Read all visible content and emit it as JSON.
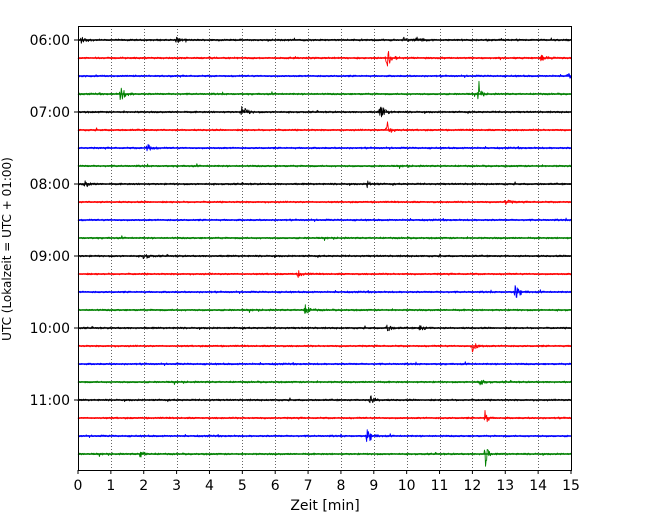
{
  "chart_data": {
    "type": "line",
    "title": "",
    "xlabel": "Zeit  [min]",
    "ylabel": "UTC (Lokalzeit = UTC + 01:00)",
    "xlim": [
      0,
      15
    ],
    "x_ticks": [
      0,
      1,
      2,
      3,
      4,
      5,
      6,
      7,
      8,
      9,
      10,
      11,
      12,
      13,
      14,
      15
    ],
    "x_tick_labels": [
      "0",
      "1",
      "2",
      "3",
      "4",
      "5",
      "6",
      "7",
      "8",
      "9",
      "10",
      "11",
      "12",
      "13",
      "14",
      "15"
    ],
    "grid": "vertical dotted",
    "row_start_times": [
      "06:00",
      "06:15",
      "06:30",
      "06:45",
      "07:00",
      "07:15",
      "07:30",
      "07:45",
      "08:00",
      "08:15",
      "08:30",
      "08:45",
      "09:00",
      "09:15",
      "09:30",
      "09:45",
      "10:00",
      "10:15",
      "10:30",
      "10:45",
      "11:00",
      "11:15",
      "11:30",
      "11:45"
    ],
    "y_tick_labels": [
      "06:00",
      "07:00",
      "08:00",
      "09:00",
      "10:00",
      "11:00"
    ],
    "color_cycle": [
      "#000000",
      "#ff0000",
      "#0000ff",
      "#008000"
    ],
    "events": [
      {
        "row": 0,
        "t": 0.1,
        "amp": 0.35
      },
      {
        "row": 0,
        "t": 3.0,
        "amp": 0.3
      },
      {
        "row": 0,
        "t": 9.9,
        "amp": 0.3
      },
      {
        "row": 0,
        "t": 10.3,
        "amp": 0.4
      },
      {
        "row": 1,
        "t": 9.4,
        "amp": 1.1
      },
      {
        "row": 1,
        "t": 14.1,
        "amp": 0.3
      },
      {
        "row": 2,
        "t": 14.9,
        "amp": 0.45
      },
      {
        "row": 3,
        "t": 1.3,
        "amp": 0.75
      },
      {
        "row": 3,
        "t": 12.2,
        "amp": 1.5
      },
      {
        "row": 4,
        "t": 5.0,
        "amp": 0.75
      },
      {
        "row": 4,
        "t": 9.2,
        "amp": 0.85
      },
      {
        "row": 5,
        "t": 9.4,
        "amp": 0.95
      },
      {
        "row": 6,
        "t": 2.1,
        "amp": 0.5
      },
      {
        "row": 8,
        "t": 0.2,
        "amp": 0.4
      },
      {
        "row": 8,
        "t": 8.8,
        "amp": 0.35
      },
      {
        "row": 9,
        "t": 13.0,
        "amp": 0.35
      },
      {
        "row": 12,
        "t": 2.0,
        "amp": 0.35
      },
      {
        "row": 13,
        "t": 6.7,
        "amp": 0.35
      },
      {
        "row": 14,
        "t": 13.3,
        "amp": 0.9
      },
      {
        "row": 15,
        "t": 6.9,
        "amp": 0.6
      },
      {
        "row": 16,
        "t": 9.4,
        "amp": 0.4
      },
      {
        "row": 16,
        "t": 10.4,
        "amp": 0.35
      },
      {
        "row": 17,
        "t": 12.0,
        "amp": 0.6
      },
      {
        "row": 19,
        "t": 12.2,
        "amp": 0.45
      },
      {
        "row": 20,
        "t": 8.9,
        "amp": 0.45
      },
      {
        "row": 21,
        "t": 12.4,
        "amp": 1.3
      },
      {
        "row": 22,
        "t": 8.8,
        "amp": 0.85
      },
      {
        "row": 23,
        "t": 12.4,
        "amp": 2.0
      },
      {
        "row": 23,
        "t": 1.9,
        "amp": 0.35
      }
    ]
  }
}
